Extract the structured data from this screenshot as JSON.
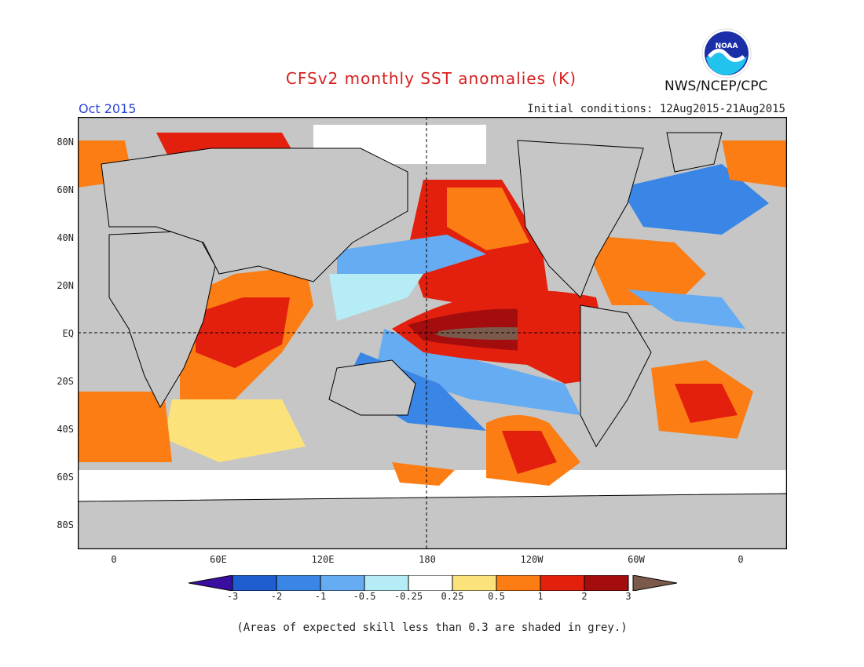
{
  "title": "CFSv2 monthly SST anomalies (K)",
  "target_month": "Oct 2015",
  "initial_conditions": "Initial conditions: 12Aug2015-21Aug2015",
  "agency": "NWS/NCEP/CPC",
  "logo_text": "NOAA",
  "lat_labels": [
    "80N",
    "60N",
    "40N",
    "20N",
    "EQ",
    "20S",
    "40S",
    "60S",
    "80S"
  ],
  "lon_labels": [
    "0",
    "60E",
    "120E",
    "180",
    "120W",
    "60W",
    "0"
  ],
  "colorbar": {
    "labels": [
      "-3",
      "-2",
      "-1",
      "-0.5",
      "-0.25",
      "0.25",
      "0.5",
      "1",
      "2",
      "3"
    ],
    "colors": [
      "#3a0ea0",
      "#1e5ed0",
      "#3a86e6",
      "#66acf2",
      "#b6ecf6",
      "#ffffff",
      "#fce27a",
      "#fb7d14",
      "#e3200d",
      "#a40d0d",
      "#7b5a4c"
    ]
  },
  "footnote": "(Areas of expected skill less than 0.3 are shaded in grey.)",
  "map_colors": {
    "land": "#c6c6c6",
    "low_skill": "#c6c6c6",
    "coast": "#000000"
  }
}
